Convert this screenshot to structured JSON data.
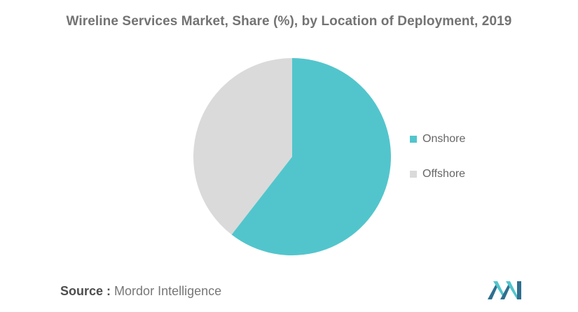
{
  "title": "Wireline Services Market, Share (%), by Location of Deployment, 2019",
  "source": {
    "label": "Source :",
    "value": "Mordor Intelligence"
  },
  "colors": {
    "onshore": "#52c5cc",
    "offshore": "#dadada"
  },
  "logo_icon": "mordor-intelligence-logo",
  "chart_data": {
    "type": "pie",
    "title": "Wireline Services Market, Share (%), by Location of Deployment, 2019",
    "categories": [
      "Onshore",
      "Offshore"
    ],
    "values": [
      60.5,
      39.5
    ],
    "colors": [
      "#52c5cc",
      "#dadada"
    ],
    "legend_position": "right",
    "start_angle": "top",
    "direction": "clockwise"
  }
}
